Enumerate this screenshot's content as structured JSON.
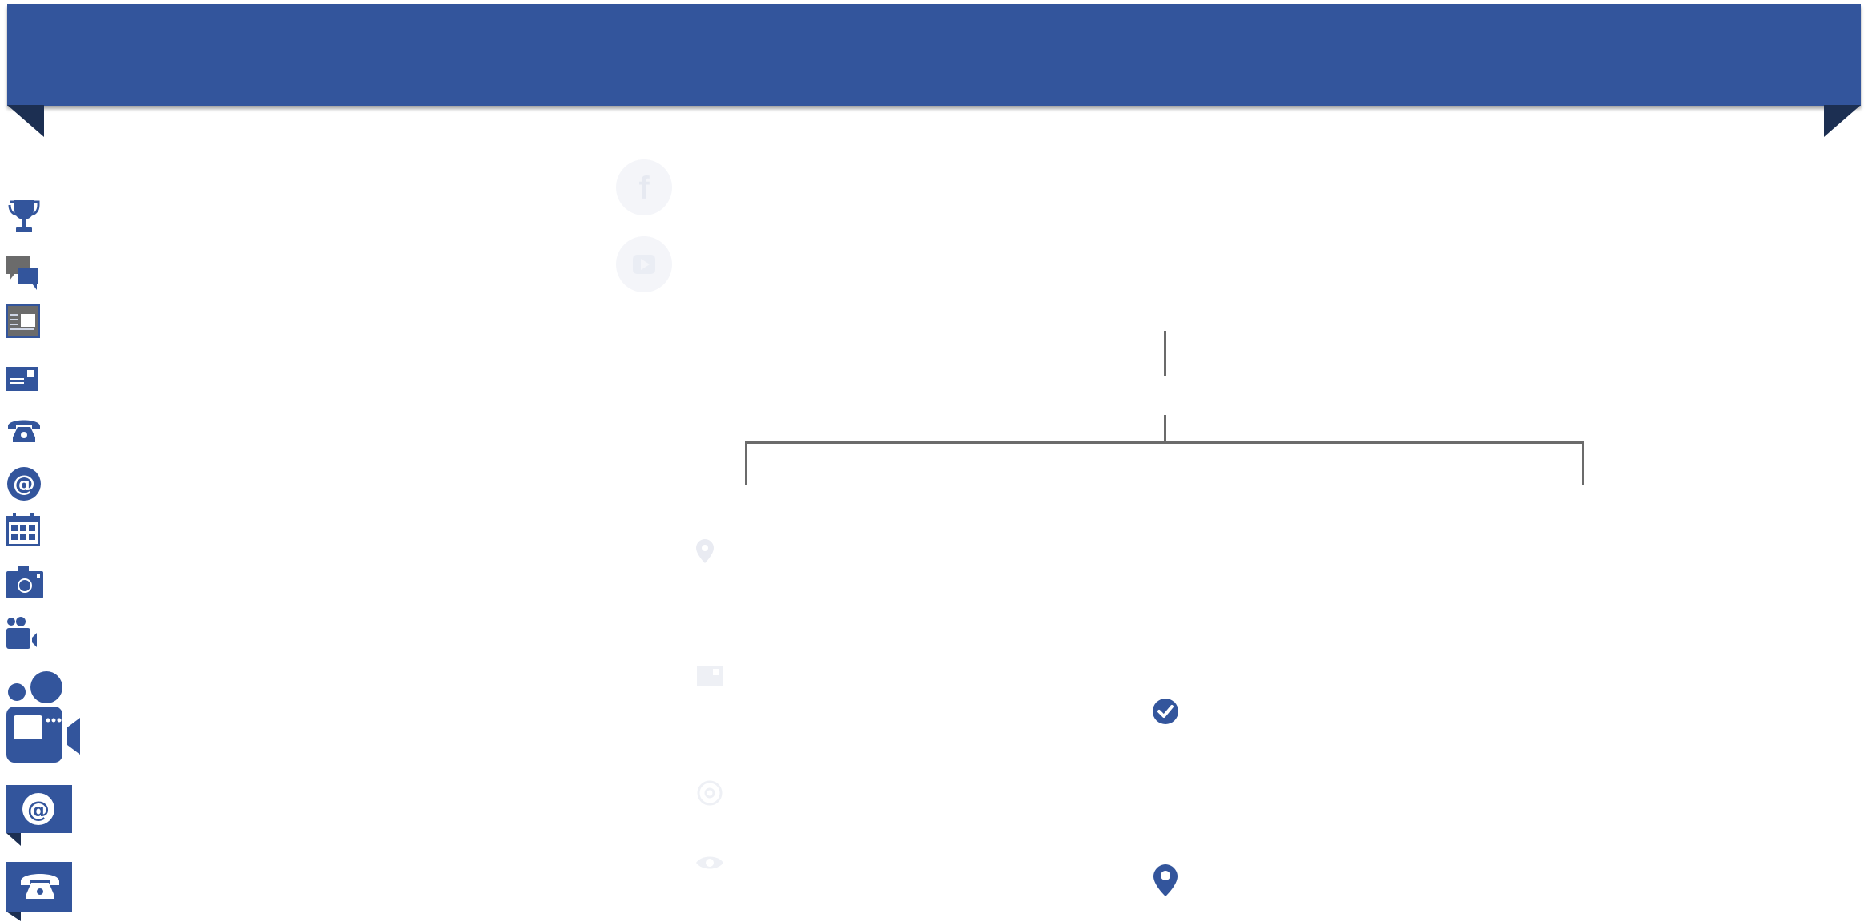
{
  "theme": {
    "primary": "#33559c",
    "primary_dark": "#1c2f52",
    "gray": "#6b6b6b",
    "faint": "#f4f5f9",
    "faint_icon": "#e9ebf2"
  },
  "banner": {
    "title": ""
  },
  "left_icons": [
    "trophy-icon",
    "chat-bubbles-icon",
    "newspaper-icon",
    "id-card-icon",
    "phone-icon",
    "at-sign-icon",
    "calendar-icon",
    "camera-icon",
    "video-conference-icon",
    "video-conference-large-icon",
    "at-sign-callout-icon",
    "phone-callout-icon"
  ],
  "faint_icons": [
    "facebook-icon",
    "youtube-icon",
    "location-pin-icon",
    "card-icon",
    "at-sign-icon",
    "eye-icon"
  ],
  "diagram_icons": [
    "check-circle-icon",
    "location-pin-icon"
  ]
}
